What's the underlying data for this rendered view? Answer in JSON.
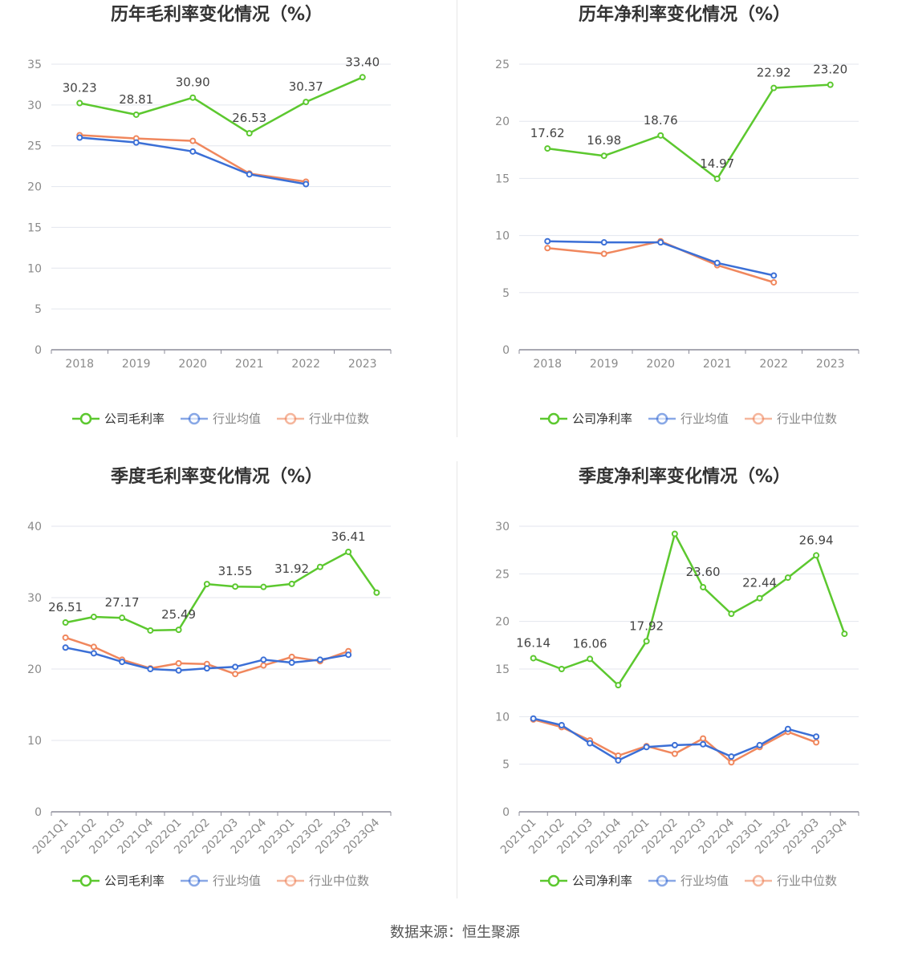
{
  "source": "数据来源：恒生聚源",
  "legend_labels": {
    "company_gross": "公司毛利率",
    "company_net": "公司净利率",
    "industry_avg": "行业均值",
    "industry_median": "行业中位数"
  },
  "colors": {
    "company": "#5cc82f",
    "industry_avg": "#3b6fd6",
    "industry_median": "#f0875d",
    "axis": "#8c8c99",
    "grid": "#e3e6ee"
  },
  "chart_data": [
    {
      "type": "line",
      "title": "历年毛利率变化情况（%）",
      "categories": [
        "2018",
        "2019",
        "2020",
        "2021",
        "2022",
        "2023"
      ],
      "ylim": [
        0,
        35
      ],
      "yticks": [
        0,
        5,
        10,
        15,
        20,
        25,
        30,
        35
      ],
      "series": [
        {
          "name": "公司毛利率",
          "values": [
            30.23,
            28.81,
            30.9,
            26.53,
            30.37,
            33.4
          ]
        },
        {
          "name": "行业均值",
          "values": [
            26.0,
            25.4,
            24.3,
            21.5,
            20.3,
            null
          ]
        },
        {
          "name": "行业中位数",
          "values": [
            26.3,
            25.9,
            25.6,
            21.6,
            20.6,
            null
          ]
        }
      ],
      "labels": [
        "30.23",
        "28.81",
        "30.90",
        "26.53",
        "30.37",
        "33.40"
      ],
      "grid": true,
      "legend": "bottom"
    },
    {
      "type": "line",
      "title": "历年净利率变化情况（%）",
      "categories": [
        "2018",
        "2019",
        "2020",
        "2021",
        "2022",
        "2023"
      ],
      "ylim": [
        0,
        25
      ],
      "yticks": [
        0,
        5,
        10,
        15,
        20,
        25
      ],
      "series": [
        {
          "name": "公司净利率",
          "values": [
            17.62,
            16.98,
            18.76,
            14.97,
            22.92,
            23.2
          ]
        },
        {
          "name": "行业均值",
          "values": [
            9.5,
            9.4,
            9.4,
            7.6,
            6.5,
            null
          ]
        },
        {
          "name": "行业中位数",
          "values": [
            8.9,
            8.4,
            9.5,
            7.4,
            5.9,
            null
          ]
        }
      ],
      "labels": [
        "17.62",
        "16.98",
        "18.76",
        "14.97",
        "22.92",
        "23.20"
      ],
      "grid": true,
      "legend": "bottom"
    },
    {
      "type": "line",
      "title": "季度毛利率变化情况（%）",
      "categories": [
        "2021Q1",
        "2021Q2",
        "2021Q3",
        "2021Q4",
        "2022Q1",
        "2022Q2",
        "2022Q3",
        "2022Q4",
        "2023Q1",
        "2023Q2",
        "2023Q3",
        "2023Q4"
      ],
      "ylim": [
        0,
        40
      ],
      "yticks": [
        0,
        10,
        20,
        30,
        40
      ],
      "series": [
        {
          "name": "公司毛利率",
          "values": [
            26.51,
            27.3,
            27.17,
            25.4,
            25.49,
            31.9,
            31.55,
            31.5,
            31.92,
            34.3,
            36.41,
            30.7
          ]
        },
        {
          "name": "行业均值",
          "values": [
            23.0,
            22.2,
            21.0,
            20.0,
            19.8,
            20.1,
            20.3,
            21.3,
            20.9,
            21.3,
            22.0,
            null
          ]
        },
        {
          "name": "行业中位数",
          "values": [
            24.4,
            23.1,
            21.3,
            20.1,
            20.8,
            20.7,
            19.3,
            20.5,
            21.7,
            21.1,
            22.5,
            null
          ]
        }
      ],
      "labels": [
        "26.51",
        "",
        "27.17",
        "",
        "25.49",
        "",
        "31.55",
        "",
        "31.92",
        "",
        "36.41",
        ""
      ],
      "grid": true,
      "legend": "bottom"
    },
    {
      "type": "line",
      "title": "季度净利率变化情况（%）",
      "categories": [
        "2021Q1",
        "2021Q2",
        "2021Q3",
        "2021Q4",
        "2022Q1",
        "2022Q2",
        "2022Q3",
        "2022Q4",
        "2023Q1",
        "2023Q2",
        "2023Q3",
        "2023Q4"
      ],
      "ylim": [
        0,
        30
      ],
      "yticks": [
        0,
        5,
        10,
        15,
        20,
        25,
        30
      ],
      "series": [
        {
          "name": "公司净利率",
          "values": [
            16.14,
            15.0,
            16.06,
            13.3,
            17.92,
            29.2,
            23.6,
            20.8,
            22.44,
            24.6,
            26.94,
            18.7
          ]
        },
        {
          "name": "行业均值",
          "values": [
            9.8,
            9.1,
            7.2,
            5.4,
            6.8,
            7.0,
            7.1,
            5.8,
            7.0,
            8.7,
            7.9,
            null
          ]
        },
        {
          "name": "行业中位数",
          "values": [
            9.7,
            8.9,
            7.5,
            5.9,
            6.9,
            6.1,
            7.7,
            5.2,
            6.8,
            8.4,
            7.3,
            null
          ]
        }
      ],
      "labels": [
        "16.14",
        "",
        "16.06",
        "",
        "17.92",
        "",
        "23.60",
        "",
        "22.44",
        "",
        "26.94",
        ""
      ],
      "grid": true,
      "legend": "bottom"
    }
  ]
}
